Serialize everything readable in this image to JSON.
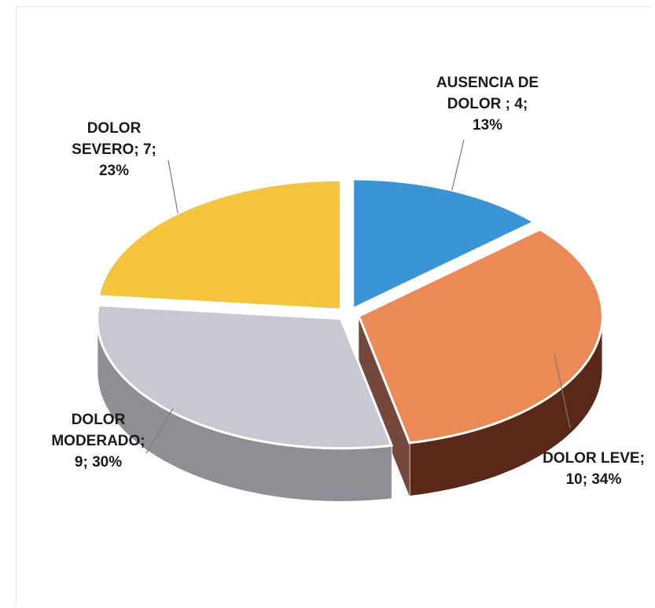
{
  "chart_data": {
    "type": "pie",
    "title": "",
    "slices": [
      {
        "label": "AUSENCIA DE DOLOR",
        "value": 4,
        "percent": "13%",
        "display": "AUSENCIA DE\nDOLOR ; 4;\n13%",
        "top": "#3a95d6",
        "side": "#1e5f93"
      },
      {
        "label": "DOLOR LEVE",
        "value": 10,
        "percent": "34%",
        "display": "DOLOR LEVE;\n10; 34%",
        "top": "#ec8a55",
        "side": "#5a2818"
      },
      {
        "label": "DOLOR MODERADO",
        "value": 9,
        "percent": "30%",
        "display": "DOLOR\nMODERADO;\n9; 30%",
        "top": "#c8c8d2",
        "side": "#8e8f94"
      },
      {
        "label": "DOLOR SEVERO",
        "value": 7,
        "percent": "23%",
        "display": "DOLOR\nSEVERO; 7;\n23%",
        "top": "#f4c43c",
        "side": "#b88a1e"
      }
    ]
  }
}
